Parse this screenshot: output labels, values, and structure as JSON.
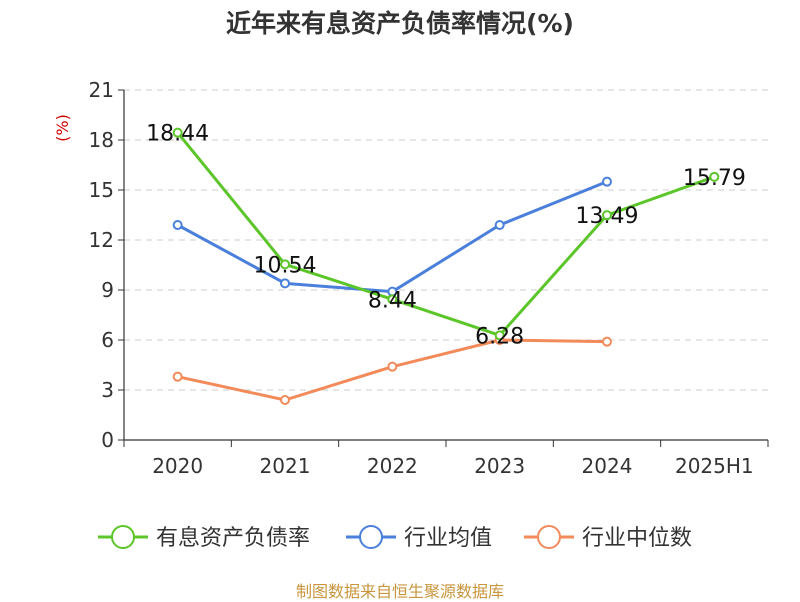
{
  "title": "近年来有息资产负债率情况(%)",
  "source": "制图数据来自恒生聚源数据库",
  "colors": {
    "series_debt": "#5cc52a",
    "series_industry_avg": "#4a7fdb",
    "series_industry_median": "#f28a5a",
    "unit_label": "#cc0000",
    "source_text": "#c8963e",
    "grid": "#cccccc",
    "axis": "#333333"
  },
  "chart_data": {
    "type": "line",
    "title": "近年来有息资产负债率情况(%)",
    "ylabel": "(%)",
    "xlabel": "",
    "categories": [
      "2020",
      "2021",
      "2022",
      "2023",
      "2024",
      "2025H1"
    ],
    "ylim": [
      0,
      21
    ],
    "yticks": [
      0,
      3,
      6,
      9,
      12,
      15,
      18,
      21
    ],
    "grid": "horizontal dashed",
    "legend_position": "bottom",
    "series": [
      {
        "name": "有息资产负债率",
        "color": "#5cc52a",
        "values": [
          18.44,
          10.54,
          8.44,
          6.28,
          13.49,
          15.79
        ],
        "labels": [
          "18.44",
          "10.54",
          "8.44",
          "6.28",
          "13.49",
          "15.79"
        ]
      },
      {
        "name": "行业均值",
        "color": "#4a7fdb",
        "values": [
          12.9,
          9.4,
          8.9,
          12.9,
          15.5,
          null
        ]
      },
      {
        "name": "行业中位数",
        "color": "#f28a5a",
        "values": [
          3.8,
          2.4,
          4.4,
          6.0,
          5.9,
          null
        ]
      }
    ]
  }
}
